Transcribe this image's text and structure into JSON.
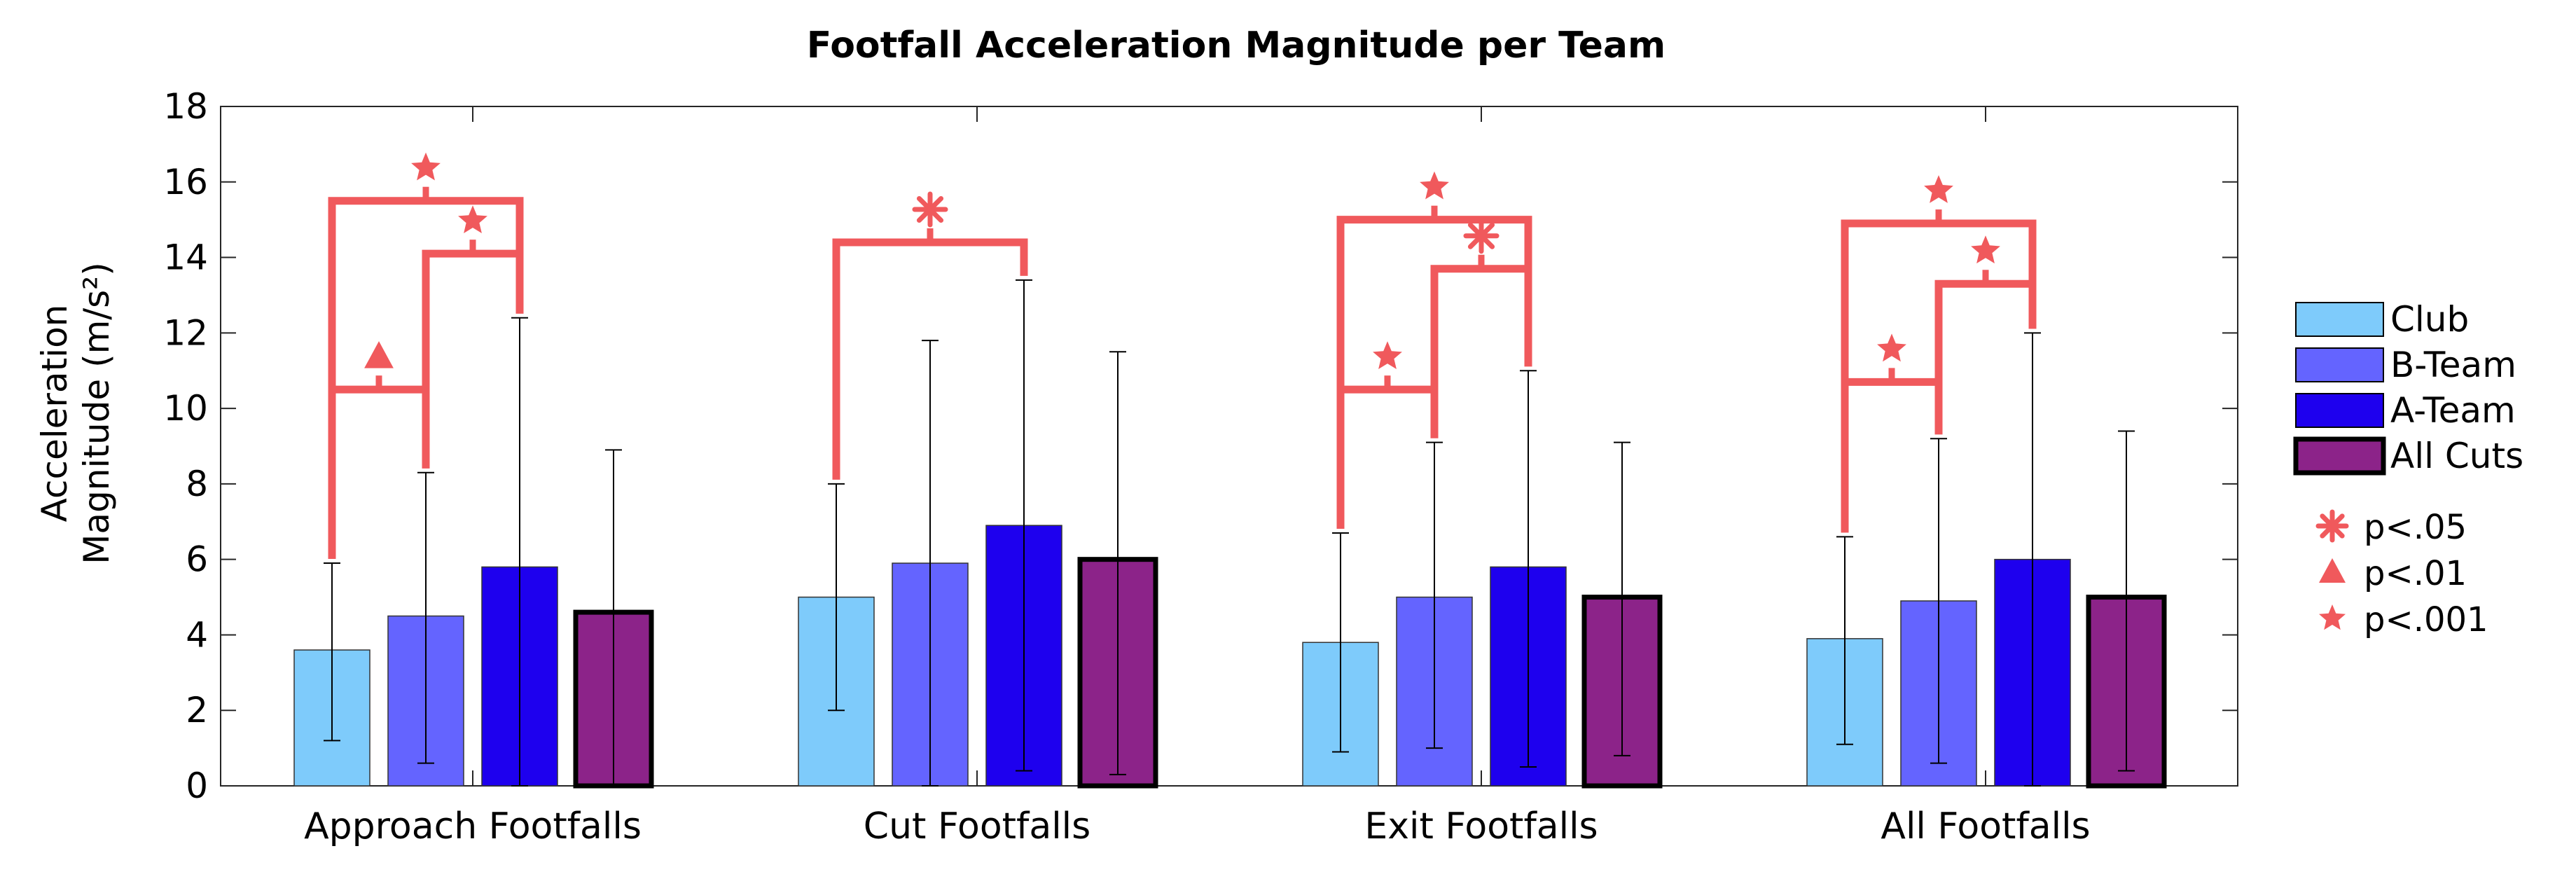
{
  "chart_data": {
    "type": "bar",
    "title": "Footfall Acceleration Magnitude per Team",
    "xlabel": "",
    "ylabel_line1": "Acceleration",
    "ylabel_line2": "Magnitude (m/s²)",
    "ylim": [
      0,
      18
    ],
    "yticks": [
      "0",
      "2",
      "4",
      "6",
      "8",
      "10",
      "12",
      "14",
      "16",
      "18"
    ],
    "categories": [
      "Approach Footfalls",
      "Cut Footfalls",
      "Exit Footfalls",
      "All Footfalls"
    ],
    "series": [
      {
        "name": "Club",
        "color": "#7ecbfb",
        "values": [
          3.6,
          5.0,
          3.8,
          3.9
        ],
        "err_low": [
          1.2,
          2.0,
          0.9,
          1.1
        ],
        "err_high": [
          5.9,
          8.0,
          6.7,
          6.6
        ]
      },
      {
        "name": "B-Team",
        "color": "#6464ff",
        "values": [
          4.5,
          5.9,
          5.0,
          4.9
        ],
        "err_low": [
          0.6,
          0.0,
          1.0,
          0.6
        ],
        "err_high": [
          8.3,
          11.8,
          9.1,
          9.2
        ]
      },
      {
        "name": "A-Team",
        "color": "#1e00ee",
        "values": [
          5.8,
          6.9,
          5.8,
          6.0
        ],
        "err_low": [
          0.0,
          0.4,
          0.5,
          0.0
        ],
        "err_high": [
          12.4,
          13.4,
          11.0,
          12.0
        ]
      },
      {
        "name": "All Cuts",
        "color": "#8c2389",
        "values": [
          4.6,
          6.0,
          5.0,
          5.0
        ],
        "err_low": [
          0.0,
          0.3,
          0.8,
          0.4
        ],
        "err_high": [
          8.9,
          11.5,
          9.1,
          9.4
        ]
      }
    ],
    "significance_brackets": [
      {
        "category": 0,
        "from": 0,
        "to": 1,
        "level": 10.5,
        "marker": "triangle"
      },
      {
        "category": 0,
        "from": 1,
        "to": 2,
        "level": 14.1,
        "marker": "star"
      },
      {
        "category": 0,
        "from": 0,
        "to": 2,
        "level": 15.5,
        "marker": "star"
      },
      {
        "category": 1,
        "from": 0,
        "to": 2,
        "level": 14.4,
        "marker": "asterisk"
      },
      {
        "category": 2,
        "from": 0,
        "to": 1,
        "level": 10.5,
        "marker": "star"
      },
      {
        "category": 2,
        "from": 1,
        "to": 2,
        "level": 13.7,
        "marker": "asterisk"
      },
      {
        "category": 2,
        "from": 0,
        "to": 2,
        "level": 15.0,
        "marker": "star"
      },
      {
        "category": 3,
        "from": 0,
        "to": 1,
        "level": 10.7,
        "marker": "star"
      },
      {
        "category": 3,
        "from": 1,
        "to": 2,
        "level": 13.3,
        "marker": "star"
      },
      {
        "category": 3,
        "from": 0,
        "to": 2,
        "level": 14.9,
        "marker": "star"
      }
    ],
    "significance_color": "#f0595c",
    "significance_legend": [
      {
        "marker": "asterisk",
        "label": "p<.05"
      },
      {
        "marker": "triangle",
        "label": "p<.01"
      },
      {
        "marker": "star",
        "label": "p<.001"
      }
    ],
    "legend_position": "right"
  }
}
